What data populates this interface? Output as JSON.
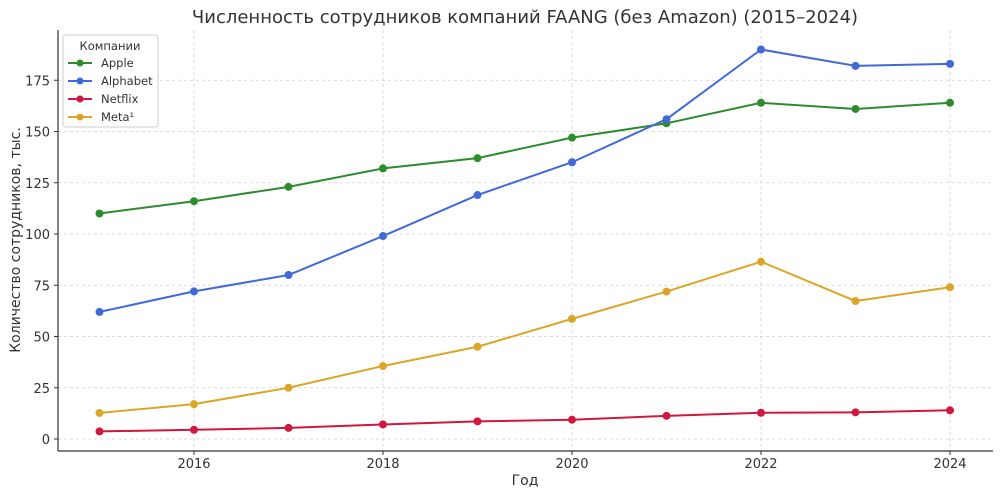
{
  "chart_data": {
    "type": "line",
    "title": "Численность сотрудников компаний FAANG (без Amazon) (2015–2024)",
    "xlabel": "Год",
    "ylabel": "Количество сотрудников, тыс.",
    "x": [
      2015,
      2016,
      2017,
      2018,
      2019,
      2020,
      2021,
      2022,
      2023,
      2024
    ],
    "xticks": [
      2016,
      2018,
      2020,
      2022,
      2024
    ],
    "yticks": [
      0,
      25,
      50,
      75,
      100,
      125,
      150,
      175
    ],
    "xlim": [
      2014.6,
      2024.45
    ],
    "ylim": [
      -6,
      198
    ],
    "grid": true,
    "legend": {
      "title": "Компании",
      "position": "upper left"
    },
    "series": [
      {
        "name": "Apple",
        "color": "#2e8b2e",
        "values": [
          110,
          116,
          123,
          132,
          137,
          147,
          154,
          164,
          161,
          164
        ]
      },
      {
        "name": "Alphabet",
        "color": "#4169d8",
        "values": [
          62,
          72,
          80,
          99,
          119,
          135,
          156,
          190,
          182,
          183
        ]
      },
      {
        "name": "Netflix",
        "color": "#d0183e",
        "values": [
          3.7,
          4.5,
          5.4,
          7.1,
          8.6,
          9.4,
          11.3,
          12.8,
          13,
          14
        ]
      },
      {
        "name": "Meta¹",
        "color": "#dba628",
        "values": [
          12.7,
          17,
          25,
          35.6,
          45,
          58.6,
          71.9,
          86.5,
          67.3,
          74
        ]
      }
    ]
  }
}
